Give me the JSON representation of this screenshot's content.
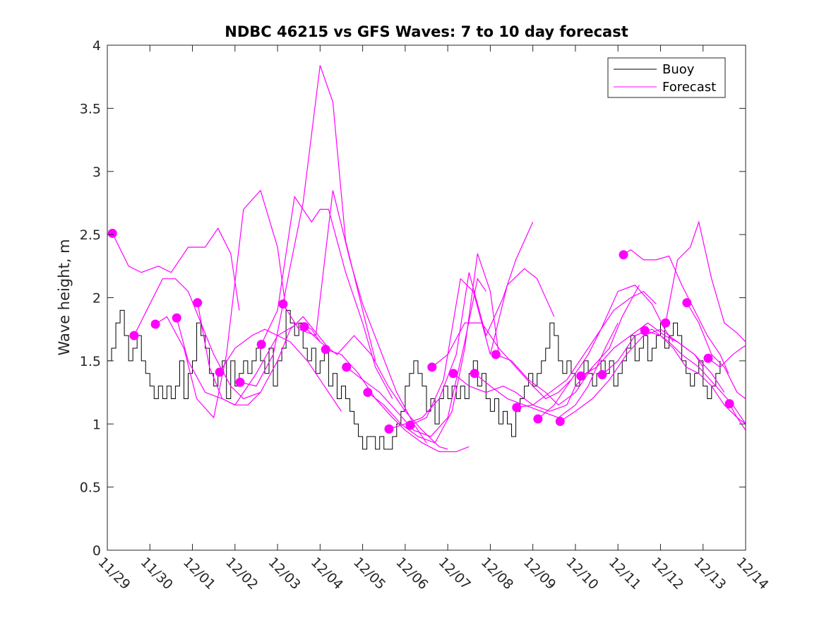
{
  "chart_data": {
    "type": "line",
    "title": "NDBC 46215 vs GFS Waves: 7 to 10 day forecast",
    "xlabel": "",
    "ylabel": "Wave height, m",
    "x_unit": "days since 11/29",
    "xlim": [
      0,
      15
    ],
    "ylim": [
      0,
      4
    ],
    "x_tick_labels": [
      "11/29",
      "11/30",
      "12/01",
      "12/02",
      "12/03",
      "12/04",
      "12/05",
      "12/06",
      "12/07",
      "12/08",
      "12/09",
      "12/10",
      "12/11",
      "12/12",
      "12/13",
      "12/14"
    ],
    "y_ticks": [
      0,
      0.5,
      1,
      1.5,
      2,
      2.5,
      3,
      3.5,
      4
    ],
    "y_tick_labels": [
      "0",
      "0.5",
      "1",
      "1.5",
      "2",
      "2.5",
      "3",
      "3.5",
      "4"
    ],
    "grid": false,
    "legend": {
      "position": "top-right",
      "entries": [
        {
          "name": "Buoy",
          "color": "#000000"
        },
        {
          "name": "Forecast",
          "color": "#ff00ff"
        }
      ]
    },
    "colors": {
      "buoy": "#000000",
      "forecast": "#ff00ff",
      "axis": "#262626"
    },
    "buoy": {
      "name": "Buoy",
      "x": [
        0,
        0.1,
        0.2,
        0.3,
        0.4,
        0.5,
        0.6,
        0.7,
        0.8,
        0.9,
        1.0,
        1.1,
        1.2,
        1.3,
        1.4,
        1.5,
        1.6,
        1.7,
        1.8,
        1.9,
        2.0,
        2.1,
        2.2,
        2.3,
        2.4,
        2.5,
        2.6,
        2.7,
        2.8,
        2.9,
        3.0,
        3.1,
        3.2,
        3.3,
        3.4,
        3.5,
        3.6,
        3.7,
        3.8,
        3.9,
        4.0,
        4.1,
        4.2,
        4.3,
        4.4,
        4.5,
        4.6,
        4.7,
        4.8,
        4.9,
        5.0,
        5.1,
        5.2,
        5.3,
        5.4,
        5.5,
        5.6,
        5.7,
        5.8,
        5.9,
        6.0,
        6.1,
        6.2,
        6.3,
        6.4,
        6.5,
        6.6,
        6.7,
        6.8,
        6.9,
        7.0,
        7.1,
        7.2,
        7.3,
        7.4,
        7.5,
        7.6,
        7.7,
        7.8,
        7.9,
        8.0,
        8.1,
        8.2,
        8.3,
        8.4,
        8.5,
        8.6,
        8.7,
        8.8,
        8.9,
        9.0,
        9.1,
        9.2,
        9.3,
        9.4,
        9.5,
        9.6,
        9.7,
        9.8,
        9.9,
        10.0,
        10.1,
        10.2,
        10.3,
        10.4,
        10.5,
        10.6,
        10.7,
        10.8,
        10.9,
        11.0,
        11.1,
        11.2,
        11.3,
        11.4,
        11.5,
        11.6,
        11.7,
        11.8,
        11.9,
        12.0,
        12.1,
        12.2,
        12.3,
        12.4,
        12.5,
        12.6,
        12.7,
        12.8,
        12.9,
        13.0,
        13.1,
        13.2,
        13.3,
        13.4,
        13.5,
        13.6,
        13.7,
        13.8,
        13.9,
        14.0,
        14.1,
        14.2,
        14.3,
        14.4
      ],
      "values": [
        1.5,
        1.6,
        1.8,
        1.9,
        1.7,
        1.5,
        1.6,
        1.7,
        1.5,
        1.4,
        1.3,
        1.2,
        1.3,
        1.2,
        1.3,
        1.2,
        1.3,
        1.5,
        1.2,
        1.4,
        1.5,
        1.8,
        1.7,
        1.6,
        1.4,
        1.3,
        1.4,
        1.5,
        1.2,
        1.5,
        1.3,
        1.4,
        1.5,
        1.4,
        1.5,
        1.6,
        1.5,
        1.4,
        1.6,
        1.3,
        1.5,
        1.6,
        1.9,
        1.8,
        1.7,
        1.8,
        1.6,
        1.5,
        1.6,
        1.4,
        1.5,
        1.6,
        1.3,
        1.4,
        1.2,
        1.3,
        1.2,
        1.1,
        1.0,
        0.9,
        0.8,
        0.9,
        0.9,
        0.8,
        0.9,
        0.8,
        0.8,
        0.9,
        1.0,
        1.1,
        1.3,
        1.4,
        1.5,
        1.4,
        1.3,
        1.1,
        1.2,
        1.0,
        1.2,
        1.3,
        1.2,
        1.3,
        1.2,
        1.3,
        1.2,
        1.4,
        1.5,
        1.3,
        1.4,
        1.2,
        1.1,
        1.2,
        1.0,
        1.1,
        1.0,
        0.9,
        1.1,
        1.2,
        1.3,
        1.4,
        1.3,
        1.4,
        1.5,
        1.6,
        1.8,
        1.7,
        1.5,
        1.4,
        1.5,
        1.4,
        1.3,
        1.4,
        1.5,
        1.4,
        1.3,
        1.4,
        1.5,
        1.4,
        1.5,
        1.3,
        1.4,
        1.5,
        1.6,
        1.7,
        1.5,
        1.6,
        1.7,
        1.5,
        1.6,
        1.7,
        1.8,
        1.6,
        1.7,
        1.8,
        1.7,
        1.5,
        1.4,
        1.3,
        1.4,
        1.5,
        1.3,
        1.2,
        1.3,
        1.4,
        1.5
      ]
    },
    "forecast_start_dots": {
      "x": [
        0.12,
        0.63,
        1.13,
        1.63,
        2.12,
        2.64,
        3.12,
        3.62,
        4.13,
        4.63,
        5.13,
        5.62,
        6.12,
        6.62,
        7.12,
        7.63,
        8.13,
        8.63,
        9.13,
        9.62,
        10.12,
        10.64,
        11.13,
        11.63,
        12.13,
        12.63,
        13.12,
        13.62,
        14.12,
        14.62
      ],
      "values": [
        2.51,
        1.7,
        1.79,
        1.84,
        1.96,
        1.41,
        1.33,
        1.63,
        1.95,
        1.77,
        1.59,
        1.45,
        1.25,
        0.96,
        0.99,
        1.45,
        1.4,
        1.4,
        1.55,
        1.13,
        1.04,
        1.02,
        1.38,
        1.39,
        2.34,
        1.74,
        1.8,
        1.96,
        1.52,
        1.16
      ]
    },
    "forecast_series": [
      {
        "name": "Forecast",
        "x": [
          0.12,
          0.5,
          0.8,
          1.2,
          1.5,
          1.9,
          2.3,
          2.6,
          2.9,
          3.1
        ],
        "values": [
          2.51,
          2.25,
          2.2,
          2.25,
          2.2,
          2.4,
          2.4,
          2.55,
          2.35,
          1.9
        ]
      },
      {
        "name": "Forecast",
        "x": [
          0.63,
          1.0,
          1.3,
          1.6,
          1.9,
          2.2,
          2.5,
          2.9,
          3.2,
          3.6
        ],
        "values": [
          1.7,
          1.95,
          2.15,
          2.15,
          2.05,
          1.8,
          1.55,
          1.3,
          1.2,
          1.25
        ]
      },
      {
        "name": "Forecast",
        "x": [
          1.13,
          1.4,
          1.8,
          2.1,
          2.5,
          2.8,
          3.2,
          3.6,
          4.0,
          4.2
        ],
        "values": [
          1.79,
          1.85,
          1.6,
          1.2,
          1.05,
          1.55,
          2.7,
          2.85,
          2.4,
          1.9
        ]
      },
      {
        "name": "Forecast",
        "x": [
          1.63,
          1.9,
          2.3,
          2.7,
          3.0,
          3.5,
          4.0,
          4.5,
          4.8,
          5.0
        ],
        "values": [
          1.84,
          1.5,
          1.25,
          1.2,
          1.15,
          1.4,
          1.7,
          1.8,
          1.75,
          1.65
        ]
      },
      {
        "name": "Forecast",
        "x": [
          2.12,
          2.4,
          2.7,
          3.0,
          3.3,
          3.6,
          4.0,
          4.3,
          4.6,
          5.2
        ],
        "values": [
          1.96,
          1.45,
          1.2,
          1.15,
          1.15,
          1.25,
          1.5,
          1.75,
          1.85,
          1.6
        ]
      },
      {
        "name": "Forecast",
        "x": [
          2.64,
          3.0,
          3.4,
          3.7,
          4.0,
          4.3,
          4.7,
          5.0,
          5.3,
          5.5
        ],
        "values": [
          1.41,
          1.6,
          1.7,
          1.75,
          1.7,
          1.65,
          1.5,
          1.35,
          1.2,
          1.1
        ]
      },
      {
        "name": "Forecast",
        "x": [
          3.12,
          3.5,
          3.9,
          4.3,
          4.6,
          5.0,
          5.3,
          5.6,
          6.0,
          6.3
        ],
        "values": [
          1.33,
          1.3,
          1.55,
          2.25,
          2.75,
          3.84,
          3.55,
          2.45,
          1.9,
          1.5
        ]
      },
      {
        "name": "Forecast",
        "x": [
          3.62,
          4.0,
          4.4,
          4.8,
          5.0,
          5.2,
          5.6,
          6.0,
          6.3,
          6.7
        ],
        "values": [
          1.63,
          1.9,
          2.8,
          2.6,
          2.7,
          2.7,
          2.2,
          1.8,
          1.45,
          1.2
        ]
      },
      {
        "name": "Forecast",
        "x": [
          4.13,
          4.5,
          4.9,
          5.3,
          5.7,
          6.0,
          6.4,
          6.8,
          7.2,
          7.5
        ],
        "values": [
          1.95,
          1.75,
          1.7,
          2.85,
          2.3,
          1.95,
          1.6,
          1.25,
          1.0,
          0.85
        ]
      },
      {
        "name": "Forecast",
        "x": [
          4.63,
          5.0,
          5.4,
          5.8,
          6.2,
          6.6,
          7.0,
          7.4,
          7.8,
          8.0
        ],
        "values": [
          1.77,
          1.65,
          1.55,
          1.7,
          1.55,
          1.3,
          1.1,
          0.95,
          0.82,
          0.8
        ]
      },
      {
        "name": "Forecast",
        "x": [
          5.13,
          5.5,
          5.9,
          6.3,
          6.7,
          7.0,
          7.4,
          7.8,
          8.2,
          8.5
        ],
        "values": [
          1.59,
          1.55,
          1.4,
          1.2,
          1.05,
          0.95,
          0.85,
          0.78,
          0.78,
          0.82
        ]
      },
      {
        "name": "Forecast",
        "x": [
          5.62,
          6.0,
          6.4,
          6.8,
          7.2,
          7.6,
          8.0,
          8.4,
          8.7,
          8.9
        ],
        "values": [
          1.45,
          1.35,
          1.25,
          1.1,
          0.95,
          0.9,
          1.05,
          1.65,
          2.15,
          2.05
        ]
      },
      {
        "name": "Forecast",
        "x": [
          6.12,
          6.5,
          6.9,
          7.3,
          7.7,
          8.1,
          8.4,
          8.7,
          9.0,
          9.2
        ],
        "values": [
          1.25,
          1.15,
          1.0,
          0.9,
          0.85,
          1.1,
          1.6,
          2.35,
          2.05,
          1.55
        ]
      },
      {
        "name": "Forecast",
        "x": [
          6.62,
          7.0,
          7.4,
          7.8,
          8.2,
          8.5,
          8.9,
          9.3,
          9.6,
          10.0
        ],
        "values": [
          0.96,
          1.0,
          1.05,
          1.2,
          1.55,
          2.2,
          1.7,
          2.0,
          2.3,
          2.6
        ]
      },
      {
        "name": "Forecast",
        "x": [
          7.12,
          7.5,
          7.9,
          8.3,
          8.6,
          9.0,
          9.4,
          9.8,
          10.1,
          10.5
        ],
        "values": [
          0.99,
          1.05,
          1.35,
          2.15,
          2.05,
          1.55,
          2.1,
          2.23,
          2.15,
          1.85
        ]
      },
      {
        "name": "Forecast",
        "x": [
          7.63,
          8.0,
          8.4,
          8.8,
          9.2,
          9.6,
          10.0,
          10.3,
          10.6,
          10.9
        ],
        "values": [
          1.45,
          1.55,
          1.8,
          1.8,
          1.6,
          1.45,
          1.3,
          1.2,
          1.25,
          1.35
        ]
      },
      {
        "name": "Forecast",
        "x": [
          8.13,
          8.5,
          8.9,
          9.3,
          9.6,
          10.0,
          10.4,
          10.8,
          11.0,
          11.4
        ],
        "values": [
          1.4,
          1.3,
          1.25,
          1.3,
          1.25,
          1.15,
          1.1,
          1.15,
          1.3,
          1.45
        ]
      },
      {
        "name": "Forecast",
        "x": [
          8.63,
          9.0,
          9.4,
          9.8,
          10.2,
          10.6,
          11.0,
          11.3,
          11.7,
          12.0
        ],
        "values": [
          1.4,
          1.3,
          1.2,
          1.15,
          1.1,
          1.05,
          1.15,
          1.3,
          1.6,
          1.8
        ]
      },
      {
        "name": "Forecast",
        "x": [
          9.13,
          9.5,
          9.9,
          10.3,
          10.6,
          11.0,
          11.4,
          11.8,
          12.1,
          12.5
        ],
        "values": [
          1.55,
          1.5,
          1.35,
          1.25,
          1.15,
          1.25,
          1.45,
          1.6,
          1.85,
          2.1
        ]
      },
      {
        "name": "Forecast",
        "x": [
          9.62,
          10.0,
          10.4,
          10.8,
          11.1,
          11.5,
          11.9,
          12.3,
          12.6,
          12.9
        ],
        "values": [
          1.13,
          1.15,
          1.25,
          1.35,
          1.5,
          1.7,
          1.9,
          2.0,
          2.05,
          1.95
        ]
      },
      {
        "name": "Forecast",
        "x": [
          10.12,
          10.5,
          10.9,
          11.3,
          11.6,
          12.0,
          12.4,
          12.8,
          13.1,
          13.3
        ],
        "values": [
          1.04,
          1.15,
          1.35,
          1.55,
          1.75,
          2.05,
          2.1,
          1.95,
          1.75,
          1.65
        ]
      },
      {
        "name": "Forecast",
        "x": [
          10.64,
          11.0,
          11.4,
          11.8,
          12.2,
          12.6,
          13.0,
          13.4,
          13.8,
          14.0
        ],
        "values": [
          1.02,
          1.1,
          1.2,
          1.35,
          1.55,
          1.7,
          1.75,
          1.65,
          1.55,
          1.45
        ]
      },
      {
        "name": "Forecast",
        "x": [
          11.13,
          11.5,
          11.9,
          12.3,
          12.7,
          13.1,
          13.4,
          13.8,
          14.2,
          14.5
        ],
        "values": [
          1.38,
          1.45,
          1.6,
          1.7,
          1.8,
          1.7,
          1.65,
          1.55,
          1.4,
          1.25
        ]
      },
      {
        "name": "Forecast",
        "x": [
          11.63,
          12.0,
          12.4,
          12.8,
          13.2,
          13.5,
          13.9,
          14.3,
          14.7,
          15.0
        ],
        "values": [
          1.39,
          1.5,
          1.7,
          1.75,
          1.65,
          1.55,
          1.45,
          1.3,
          1.15,
          1.0
        ]
      },
      {
        "name": "Forecast",
        "x": [
          12.13,
          12.3,
          12.6,
          12.9,
          13.2,
          13.5,
          13.8,
          14.1,
          14.4,
          14.6
        ],
        "values": [
          2.34,
          2.38,
          2.3,
          2.3,
          2.33,
          2.1,
          1.9,
          1.7,
          1.55,
          1.4
        ]
      },
      {
        "name": "Forecast",
        "x": [
          12.63,
          13.0,
          13.3,
          13.6,
          13.9,
          14.2,
          14.5,
          14.8,
          15.0
        ],
        "values": [
          1.74,
          1.7,
          1.6,
          1.45,
          1.4,
          1.3,
          1.15,
          1.05,
          0.95
        ]
      },
      {
        "name": "Forecast",
        "x": [
          13.12,
          13.4,
          13.7,
          13.9,
          14.2,
          14.5,
          14.8,
          15.0
        ],
        "values": [
          1.8,
          2.3,
          2.4,
          2.6,
          2.15,
          1.8,
          1.72,
          1.65
        ]
      },
      {
        "name": "Forecast",
        "x": [
          13.62,
          13.9,
          14.2,
          14.5,
          14.8,
          15.0
        ],
        "values": [
          1.96,
          1.8,
          1.55,
          1.45,
          1.25,
          1.2
        ]
      },
      {
        "name": "Forecast",
        "x": [
          14.12,
          14.4,
          14.7,
          14.9,
          15.0
        ],
        "values": [
          1.52,
          1.45,
          1.55,
          1.6,
          1.62
        ]
      },
      {
        "name": "Forecast",
        "x": [
          14.62,
          14.8,
          15.0
        ],
        "values": [
          1.16,
          1.05,
          1.0
        ]
      }
    ]
  }
}
